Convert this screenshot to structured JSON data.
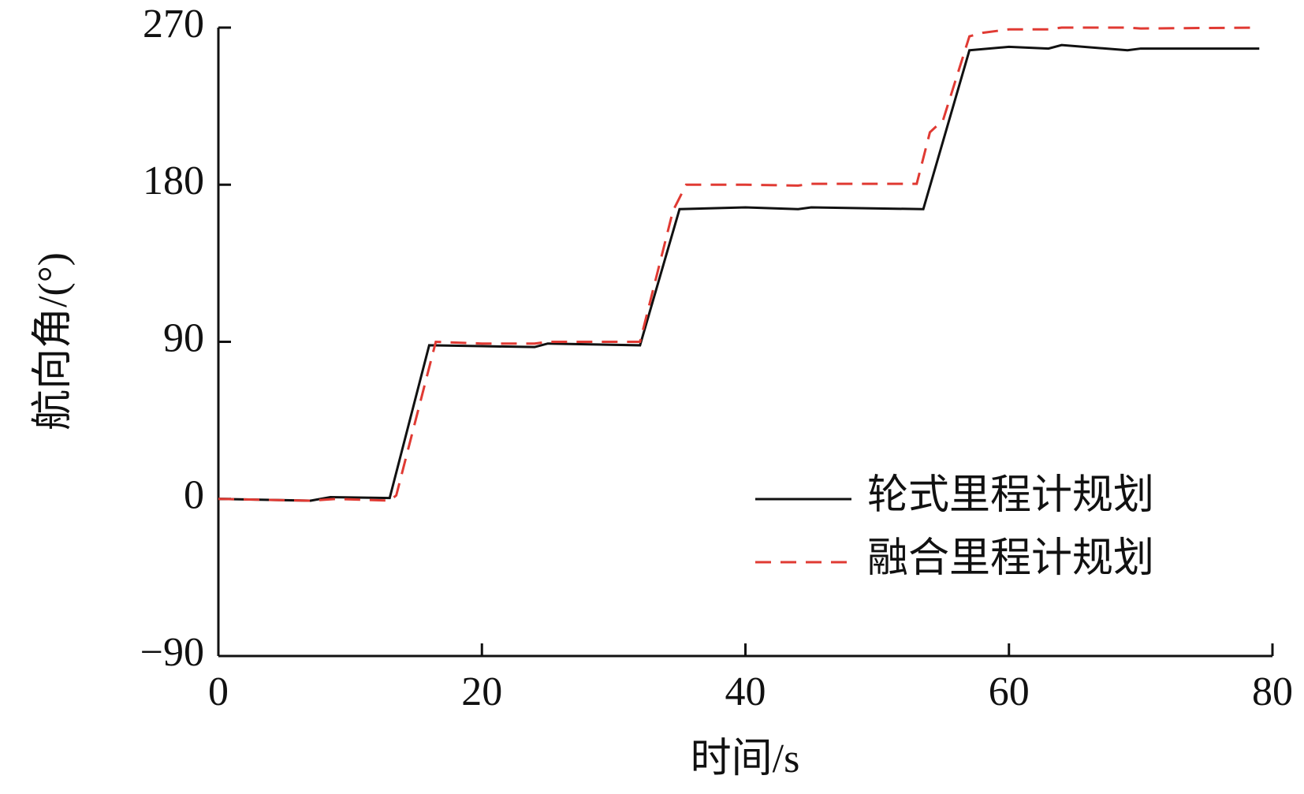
{
  "chart_data": {
    "type": "line",
    "x_label": "时间/s",
    "y_label": "航向角/(°)",
    "xlim": [
      0,
      80
    ],
    "xticks": [
      0,
      20,
      40,
      60,
      80
    ],
    "ylim": [
      -90,
      270
    ],
    "yticks": [
      -90,
      0,
      90,
      180,
      270
    ],
    "legend": "lower right",
    "grid": false,
    "series": [
      {
        "name": "轮式里程计规划",
        "color": "#111111",
        "dash": false,
        "x": [
          0,
          7,
          8.5,
          13,
          16,
          20,
          24,
          25,
          32,
          35,
          40,
          44,
          45,
          53.5,
          55,
          57,
          60,
          63,
          64,
          69,
          70,
          79
        ],
        "values": [
          0,
          -1,
          1,
          0.5,
          88,
          87.5,
          87,
          89,
          88,
          166,
          167,
          166,
          167,
          166,
          205,
          257,
          259,
          258,
          260,
          257,
          258,
          258
        ]
      },
      {
        "name": "融合里程计规划",
        "color": "#e03a33",
        "dash": true,
        "x": [
          0,
          7,
          9,
          13,
          13.5,
          16.5,
          20,
          24,
          25,
          32,
          34.5,
          35.5,
          40,
          44,
          45,
          53,
          54,
          55,
          57,
          58,
          60,
          63,
          64,
          69,
          70,
          79
        ],
        "values": [
          0,
          -1,
          0,
          -1,
          2,
          90,
          89,
          89,
          90,
          90,
          165,
          180,
          180,
          179.5,
          180.5,
          180.5,
          210,
          217,
          265,
          267,
          269,
          269,
          270,
          270,
          269.5,
          270
        ]
      }
    ]
  }
}
